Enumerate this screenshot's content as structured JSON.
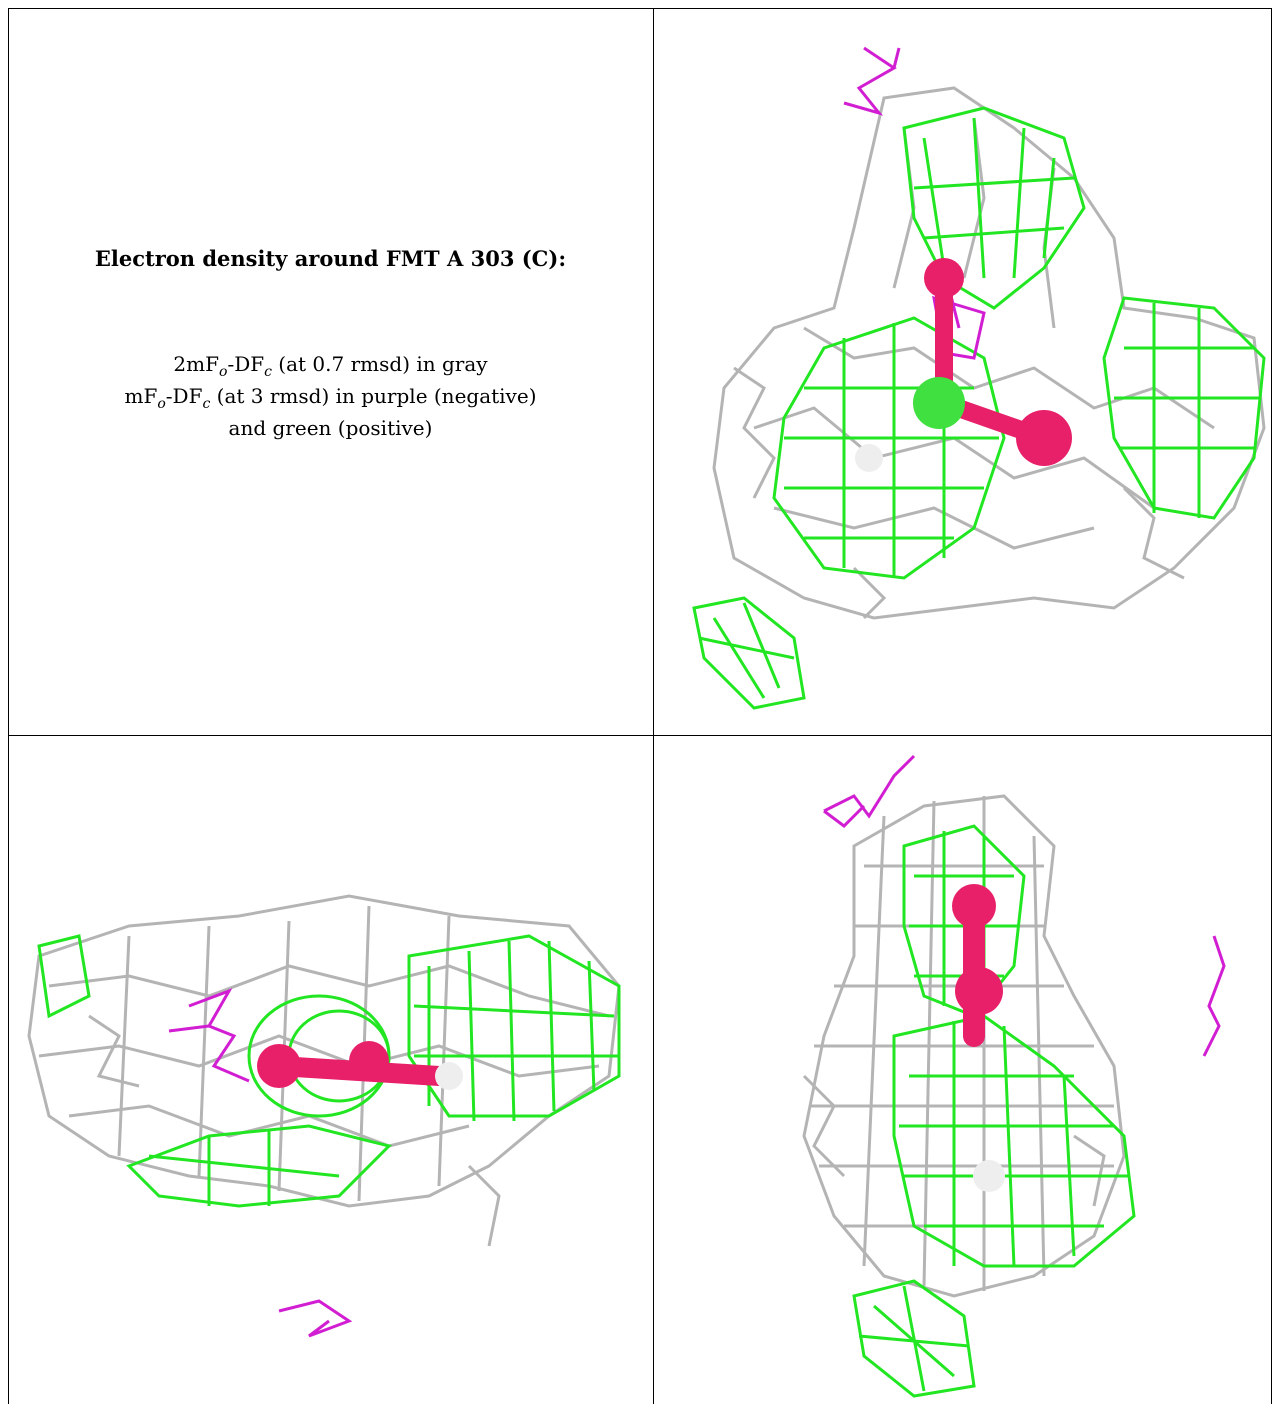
{
  "caption": {
    "title": "Electron density around FMT A 303 (C):",
    "line1": "2mFₒ-DF꜀ (at 0.7 rmsd) in gray",
    "line1_parts": [
      "2mF",
      "o",
      "-DF",
      "c",
      " (at 0.7 rmsd) in gray"
    ],
    "line2_parts": [
      "mF",
      "o",
      "-DF",
      "c",
      " (at 3 rmsd) in purple (negative)"
    ],
    "line3": "and green (positive)"
  },
  "legend_colors": {
    "gray_map": "#b4b4b4",
    "negative_map": "#d21ed2",
    "positive_map": "#22e622",
    "ligand_oxygen": "#e8206a",
    "ligand_carbon": "#3fe03f"
  },
  "panels": [
    {
      "id": "view-1",
      "kind": "density-render"
    },
    {
      "id": "view-2",
      "kind": "density-render"
    },
    {
      "id": "view-3",
      "kind": "density-render"
    }
  ]
}
